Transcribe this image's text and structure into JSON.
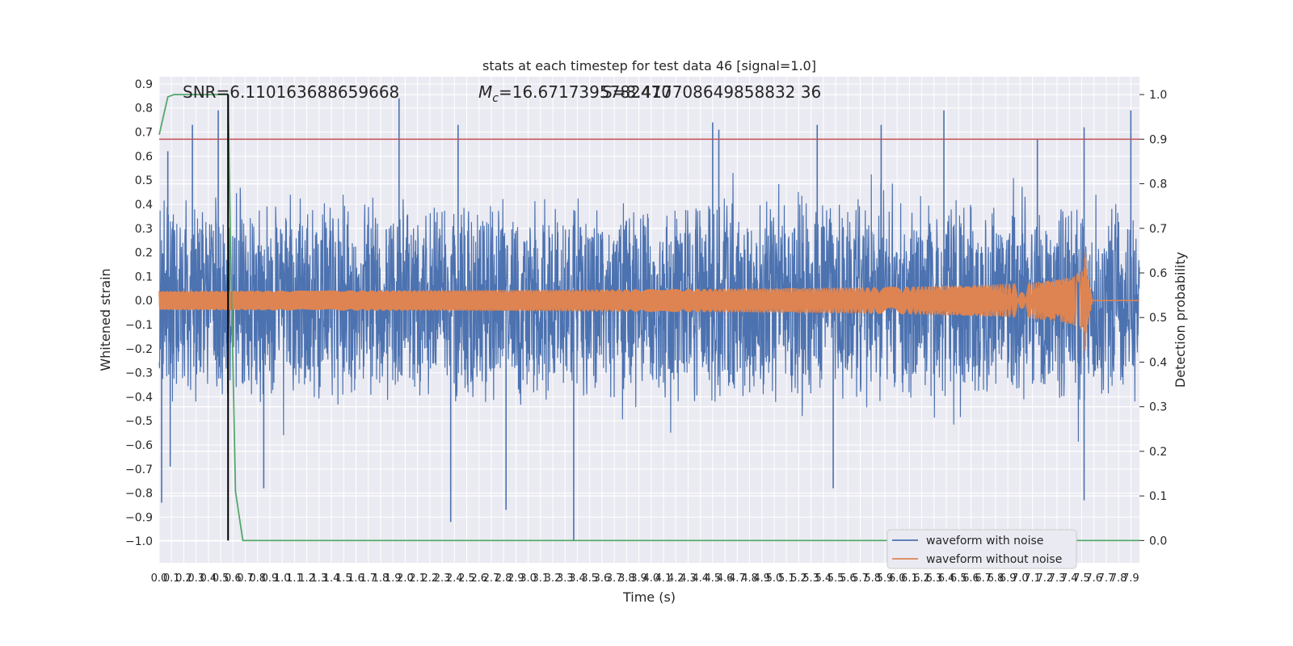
{
  "chart_data": {
    "type": "line",
    "title": "stats at each timestep for test data 46 [signal=1.0]",
    "xlabel": "Time (s)",
    "ylabel": "Whitened strain",
    "ylabel_right": "Detection probability",
    "xlim": [
      0.0,
      7.97
    ],
    "ylim": [
      -1.09,
      0.93
    ],
    "ylim_right": [
      -0.05,
      1.04
    ],
    "grid": true,
    "legend_position": "lower-right",
    "x_ticks": [
      "0.0",
      "0.1",
      "0.2",
      "0.3",
      "0.4",
      "0.5",
      "0.6",
      "0.7",
      "0.8",
      "0.9",
      "1.0",
      "1.1",
      "1.2",
      "1.3",
      "1.4",
      "1.5",
      "1.6",
      "1.7",
      "1.8",
      "1.9",
      "2.0",
      "2.1",
      "2.2",
      "2.3",
      "2.4",
      "2.5",
      "2.6",
      "2.7",
      "2.8",
      "2.9",
      "3.0",
      "3.1",
      "3.2",
      "3.3",
      "3.4",
      "3.5",
      "3.6",
      "3.7",
      "3.8",
      "3.9",
      "4.0",
      "4.1",
      "4.2",
      "4.3",
      "4.4",
      "4.5",
      "4.6",
      "4.7",
      "4.8",
      "4.9",
      "5.0",
      "5.1",
      "5.2",
      "5.3",
      "5.4",
      "5.5",
      "5.6",
      "5.7",
      "5.8",
      "5.9",
      "6.0",
      "6.1",
      "6.2",
      "6.3",
      "6.4",
      "6.5",
      "6.6",
      "6.7",
      "6.8",
      "6.9",
      "7.0",
      "7.1",
      "7.2",
      "7.3",
      "7.4",
      "7.5",
      "7.6",
      "7.7",
      "7.8",
      "7.9"
    ],
    "y_ticks": [
      "0.9",
      "0.8",
      "0.7",
      "0.6",
      "0.5",
      "0.4",
      "0.3",
      "0.2",
      "0.1",
      "0.0",
      "−0.1",
      "−0.2",
      "−0.3",
      "−0.4",
      "−0.5",
      "−0.6",
      "−0.7",
      "−0.8",
      "−0.9",
      "−1.0"
    ],
    "y_ticks_right": [
      "1.0",
      "0.9",
      "0.8",
      "0.7",
      "0.6",
      "0.5",
      "0.4",
      "0.3",
      "0.2",
      "0.1",
      "0.0"
    ],
    "annotations": {
      "snr": "SNR=6.110163688659668",
      "mc_prefix": "M",
      "mc_subscript": "c",
      "mc_value": "=16.6717395782470",
      "overlap": "S=8.417708649858832 36"
    },
    "series": [
      {
        "name": "waveform with noise",
        "color": "#4c72b0",
        "noise_band": 0.45,
        "spikes": [
          {
            "x": 0.02,
            "y": -0.84
          },
          {
            "x": 0.07,
            "y": 0.62
          },
          {
            "x": 0.09,
            "y": -0.69
          },
          {
            "x": 0.27,
            "y": 0.73
          },
          {
            "x": 0.48,
            "y": 0.79
          },
          {
            "x": 0.56,
            "y": 0.75
          },
          {
            "x": 0.85,
            "y": -0.78
          },
          {
            "x": 1.95,
            "y": 0.84
          },
          {
            "x": 2.43,
            "y": 0.73
          },
          {
            "x": 2.37,
            "y": -0.92
          },
          {
            "x": 2.82,
            "y": -0.87
          },
          {
            "x": 3.37,
            "y": -1.0
          },
          {
            "x": 4.5,
            "y": 0.74
          },
          {
            "x": 4.55,
            "y": 0.71
          },
          {
            "x": 5.35,
            "y": 0.73
          },
          {
            "x": 5.48,
            "y": -0.78
          },
          {
            "x": 5.87,
            "y": 0.73
          },
          {
            "x": 6.38,
            "y": 0.79
          },
          {
            "x": 7.14,
            "y": 0.67
          },
          {
            "x": 7.52,
            "y": 0.72
          },
          {
            "x": 7.52,
            "y": -0.83
          },
          {
            "x": 7.9,
            "y": 0.79
          }
        ]
      },
      {
        "name": "waveform without noise",
        "color": "#dd8452",
        "chirp": {
          "t_merger": 7.54,
          "peak_amplitude": 0.21,
          "t_end": 7.97
        }
      },
      {
        "name": "detection probability",
        "color": "#55a868",
        "axis": "right",
        "x": [
          0.0,
          0.07,
          0.12,
          0.18,
          0.5,
          0.56,
          0.58,
          0.62,
          0.68,
          0.7,
          7.97
        ],
        "values": [
          0.91,
          0.995,
          1.0,
          1.0,
          1.0,
          1.0,
          0.66,
          0.11,
          0.0,
          0.0,
          0.0
        ]
      }
    ],
    "threshold": {
      "value": 0.9,
      "axis": "right",
      "color": "#c44e52"
    },
    "marker_line": {
      "x": 0.56,
      "color": "#000000"
    },
    "legend": [
      {
        "label": "waveform with noise",
        "color": "#4c72b0"
      },
      {
        "label": "waveform without noise",
        "color": "#dd8452"
      }
    ],
    "colors": {
      "plot_background": "#eaeaf2",
      "grid": "#ffffff",
      "text": "#262626"
    }
  }
}
